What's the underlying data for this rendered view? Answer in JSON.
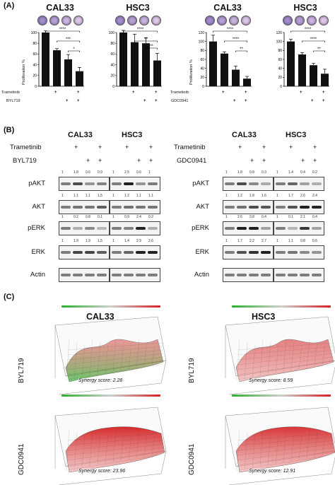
{
  "panelA": {
    "label": "(A)",
    "charts": [
      {
        "title": "CAL33",
        "ylabel": "Proliferation %",
        "cond_labels": [
          "Trametinib",
          "BYL719"
        ],
        "values": [
          100,
          67,
          50,
          28
        ],
        "errors": [
          3,
          3,
          9,
          7
        ],
        "signif": [
          "****",
          "***",
          "*"
        ],
        "yticks": [
          "0",
          "20",
          "40",
          "60",
          "80",
          "100"
        ]
      },
      {
        "title": "HSC3",
        "ylabel": "",
        "cond_labels": [],
        "values": [
          100,
          82,
          80,
          48
        ],
        "errors": [
          4,
          15,
          10,
          13
        ],
        "signif": [
          "****",
          "**",
          "**"
        ],
        "yticks": [
          "0",
          "20",
          "40",
          "60",
          "80",
          "100"
        ]
      },
      {
        "title": "CAL33",
        "ylabel": "Proliferation %",
        "cond_labels": [
          "Trametinib",
          "GDC0941"
        ],
        "values": [
          100,
          73,
          37,
          17
        ],
        "errors": [
          14,
          4,
          8,
          5
        ],
        "signif": [
          "****",
          "****",
          "**"
        ],
        "yticks": [
          "0",
          "20",
          "40",
          "60",
          "80",
          "100",
          "120"
        ]
      },
      {
        "title": "HSC3",
        "ylabel": "",
        "cond_labels": [],
        "values": [
          100,
          71,
          47,
          28
        ],
        "errors": [
          5,
          4,
          4,
          10
        ],
        "signif": [
          "****",
          "****",
          "**"
        ],
        "yticks": [
          "0",
          "20",
          "40",
          "60",
          "80",
          "100",
          "120"
        ]
      }
    ],
    "plus": "+"
  },
  "panelB": {
    "label": "(B)",
    "left": {
      "cond1": "Trametinib",
      "cond2": "BYL719",
      "cal": "CAL33",
      "hsc": "HSC3",
      "rows": [
        {
          "name": "pAKT",
          "cal_vals": [
            "1",
            "1.8",
            "0.6",
            "0.9"
          ],
          "hsc_vals": [
            "1",
            "2.5",
            "0.6",
            "1"
          ]
        },
        {
          "name": "AKT",
          "cal_vals": [
            "1",
            "1.1",
            "1.1",
            "1.5"
          ],
          "hsc_vals": [
            "1",
            "1.2",
            "1.1",
            "1.1"
          ]
        },
        {
          "name": "pERK",
          "cal_vals": [
            "1",
            "0.2",
            "0.8",
            "0.1"
          ],
          "hsc_vals": [
            "1",
            "0.9",
            "2.4",
            "0.2"
          ]
        },
        {
          "name": "ERK",
          "cal_vals": [
            "1",
            "1.9",
            "1.9",
            "1.5"
          ],
          "hsc_vals": [
            "1",
            "1.4",
            "2.9",
            "2.6"
          ]
        },
        {
          "name": "Actin",
          "cal_vals": [],
          "hsc_vals": []
        }
      ]
    },
    "right": {
      "cond1": "Trametinib",
      "cond2": "GDC0941",
      "cal": "CAL33",
      "hsc": "HSC3",
      "rows": [
        {
          "name": "pAKT",
          "cal_vals": [
            "1",
            "1.8",
            "0.8",
            "0.3"
          ],
          "hsc_vals": [
            "1",
            "1.4",
            "0.4",
            "0.2"
          ]
        },
        {
          "name": "AKT",
          "cal_vals": [
            "1",
            "1.2",
            "1.8",
            "1.6"
          ],
          "hsc_vals": [
            "1",
            "1.7",
            "2.6",
            "2.4"
          ]
        },
        {
          "name": "pERK",
          "cal_vals": [
            "1",
            "2.6",
            "3.8",
            "0.4"
          ],
          "hsc_vals": [
            "1",
            "0.1",
            "2.1",
            "0.4"
          ]
        },
        {
          "name": "ERK",
          "cal_vals": [
            "1",
            "1.7",
            "2.2",
            "2.7"
          ],
          "hsc_vals": [
            "1",
            "1.1",
            "0.8",
            "0.6"
          ]
        },
        {
          "name": "Actin",
          "cal_vals": [],
          "hsc_vals": []
        }
      ]
    },
    "plus": "+"
  },
  "panelC": {
    "label": "(C)",
    "col_titles": [
      "CAL33",
      "HSC3"
    ],
    "row_labels": [
      "BYL719",
      "GDC0941"
    ],
    "synergy_label": "Synergy score:",
    "scores": [
      "2.28",
      "8.59",
      "23.96",
      "12.91"
    ],
    "colors": {
      "synergy": "#d42020",
      "antagonism": "#2bb02b",
      "neutral": "#cfcfcf"
    }
  },
  "colors": {
    "bar": "#111111",
    "band": "#222222"
  }
}
